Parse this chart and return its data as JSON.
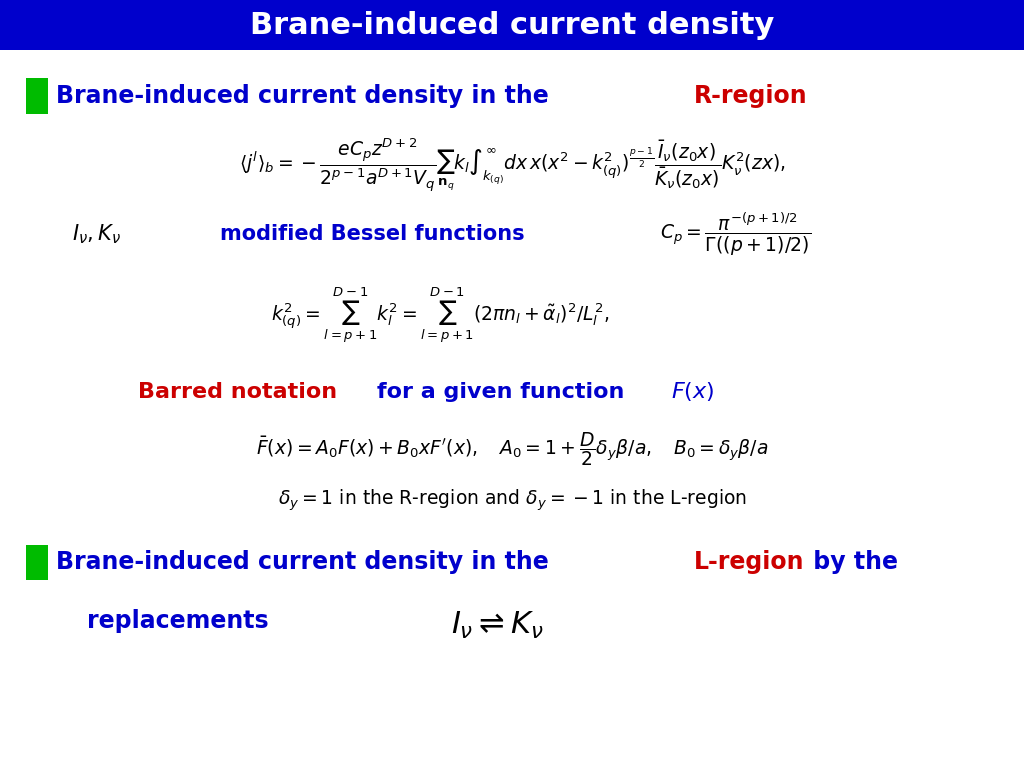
{
  "title": "Brane-induced current density",
  "title_bg": "#0000CC",
  "title_color": "#FFFFFF",
  "title_fontsize": 22,
  "bg_color": "#FFFFFF",
  "green_box_color": "#00BB00",
  "blue_text_color": "#0000CC",
  "red_text_color": "#CC0000",
  "black_text_color": "#000000",
  "eq1_label_blue": "Brane-induced current density in the ",
  "eq1_label_red": "R-region",
  "eq2_text": "modified Bessel functions",
  "barred_label_red": "Barred notation",
  "barred_label_blue": "for a given function ",
  "eq6_label_blue": "Brane-induced current density in the ",
  "eq6_label_red": "L-region",
  "eq6_label_blue2": " by the",
  "eq6_label2": "replacements"
}
